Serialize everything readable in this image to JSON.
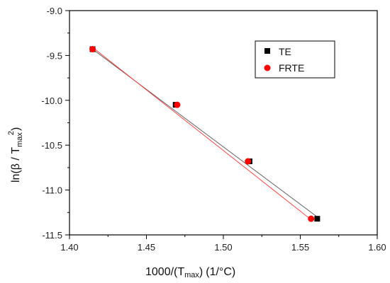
{
  "chart_data": {
    "type": "scatter",
    "xlim": [
      1.4,
      1.6
    ],
    "ylim": [
      -11.5,
      -9.0
    ],
    "x_ticks": [
      "1.40",
      "1.45",
      "1.50",
      "1.55",
      "1.60"
    ],
    "y_ticks": [
      "-9.0",
      "-9.5",
      "-10.0",
      "-10.5",
      "-11.0",
      "-11.5"
    ],
    "x_tick_values": [
      1.4,
      1.45,
      1.5,
      1.55,
      1.6
    ],
    "y_tick_values": [
      -9.0,
      -9.5,
      -10.0,
      -10.5,
      -11.0,
      -11.5
    ],
    "xlabel": {
      "main": "1000/(T",
      "sub": "max",
      "close": ")",
      "unit": "(1/°C)"
    },
    "ylabel": {
      "main": "ln(β / T",
      "sub": "max",
      "sup": "2",
      "close": ")"
    },
    "legend_position": "top-right",
    "grid": false,
    "series": [
      {
        "name": "TE",
        "marker": "square",
        "color": "#000000",
        "line_color": "#555555",
        "x": [
          1.415,
          1.469,
          1.517,
          1.561
        ],
        "y": [
          -9.43,
          -10.05,
          -10.68,
          -11.32
        ],
        "fit": {
          "x": [
            1.415,
            1.561
          ],
          "y": [
            -9.43,
            -11.3
          ]
        }
      },
      {
        "name": "FRTE",
        "marker": "circle",
        "color": "#ff0000",
        "line_color": "#ff3333",
        "x": [
          1.415,
          1.47,
          1.516,
          1.557
        ],
        "y": [
          -9.43,
          -10.05,
          -10.68,
          -11.32
        ],
        "fit": {
          "x": [
            1.415,
            1.557
          ],
          "y": [
            -9.41,
            -11.33
          ]
        }
      }
    ]
  }
}
